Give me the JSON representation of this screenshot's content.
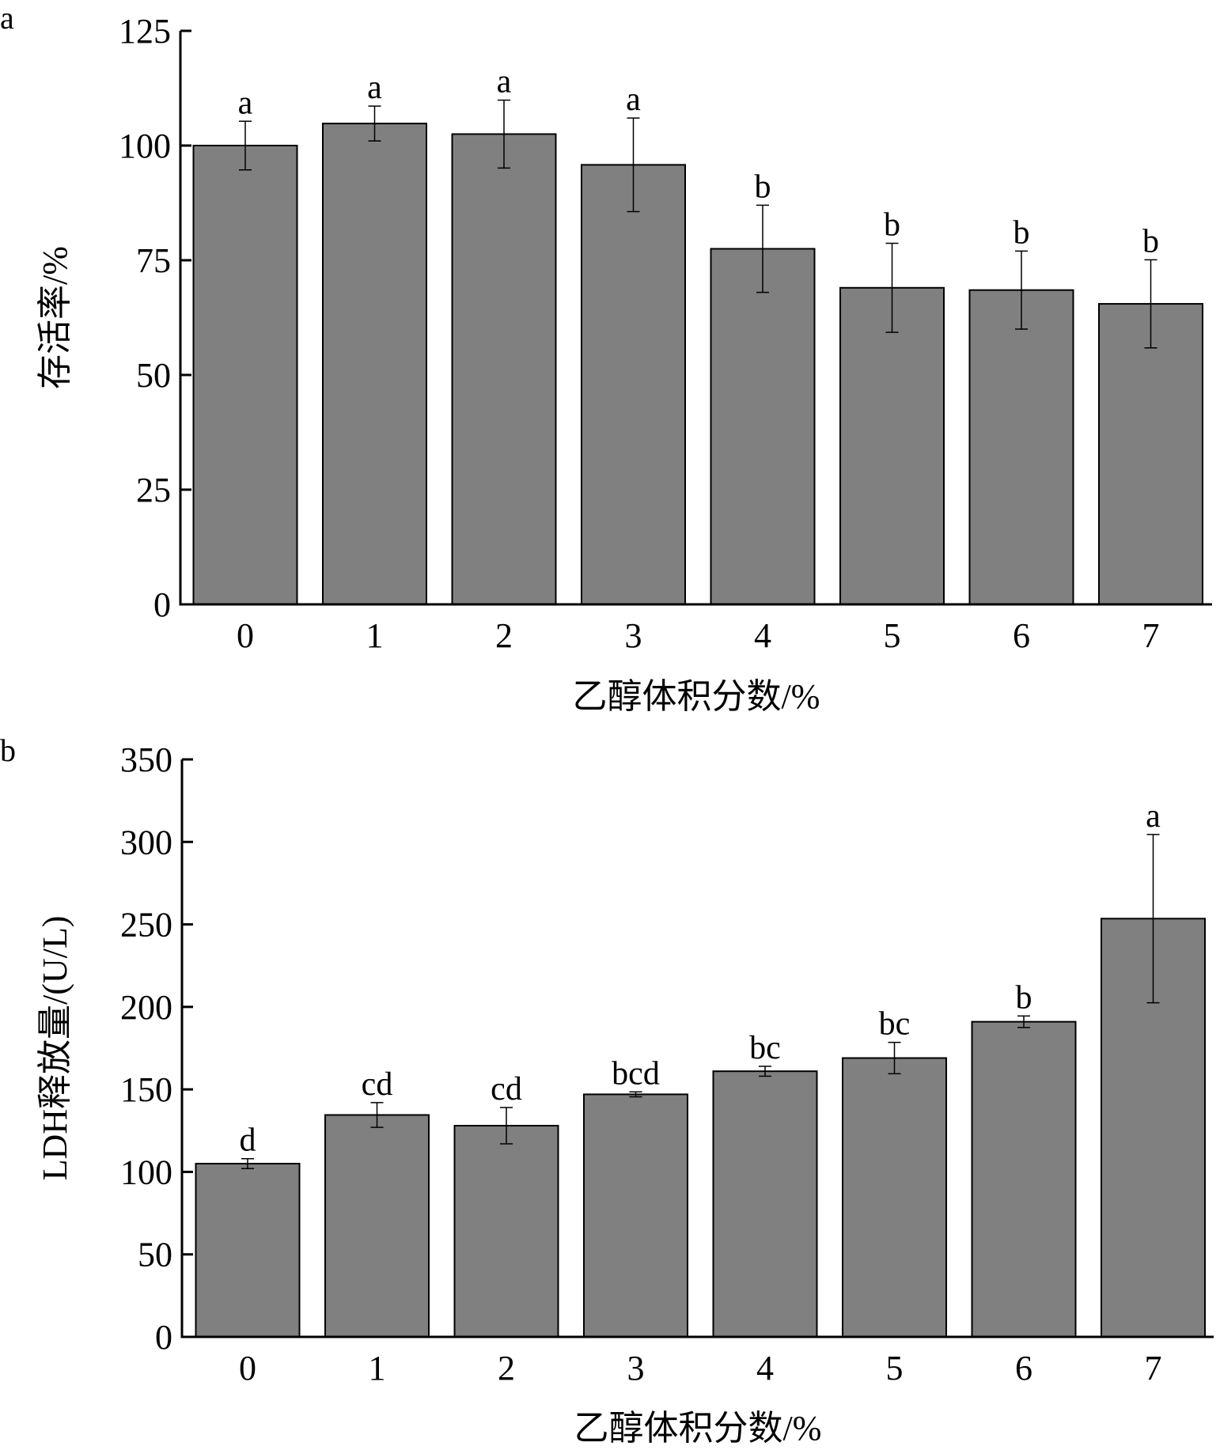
{
  "chart_data": [
    {
      "type": "bar",
      "panel_label": "a",
      "categories": [
        "0",
        "1",
        "2",
        "3",
        "4",
        "5",
        "6",
        "7"
      ],
      "values": [
        100,
        104.8,
        102.5,
        95.8,
        77.5,
        69,
        68.5,
        65.5
      ],
      "errors": [
        5.3,
        3.8,
        7.4,
        10.2,
        9.5,
        9.7,
        8.5,
        9.6
      ],
      "significance_labels": [
        "a",
        "a",
        "a",
        "a",
        "b",
        "b",
        "b",
        "b"
      ],
      "xlabel": "乙醇体积分数/%",
      "ylabel": "存活率/%",
      "ylim": [
        0,
        125
      ],
      "yticks": [
        0,
        25,
        50,
        75,
        100,
        125
      ],
      "bar_color": "#808080",
      "grid": false
    },
    {
      "type": "bar",
      "panel_label": "b",
      "categories": [
        "0",
        "1",
        "2",
        "3",
        "4",
        "5",
        "6",
        "7"
      ],
      "values": [
        105,
        134.5,
        128,
        147,
        161,
        169,
        191,
        253.5
      ],
      "errors": [
        3,
        7.5,
        11,
        1.5,
        3,
        9.5,
        3.5,
        51
      ],
      "significance_labels": [
        "d",
        "cd",
        "cd",
        "bcd",
        "bc",
        "bc",
        "b",
        "a"
      ],
      "xlabel": "乙醇体积分数/%",
      "ylabel": "LDH释放量/(U/L)",
      "ylim": [
        0,
        350
      ],
      "yticks": [
        0,
        50,
        100,
        150,
        200,
        250,
        300,
        350
      ],
      "bar_color": "#808080",
      "grid": false
    }
  ]
}
